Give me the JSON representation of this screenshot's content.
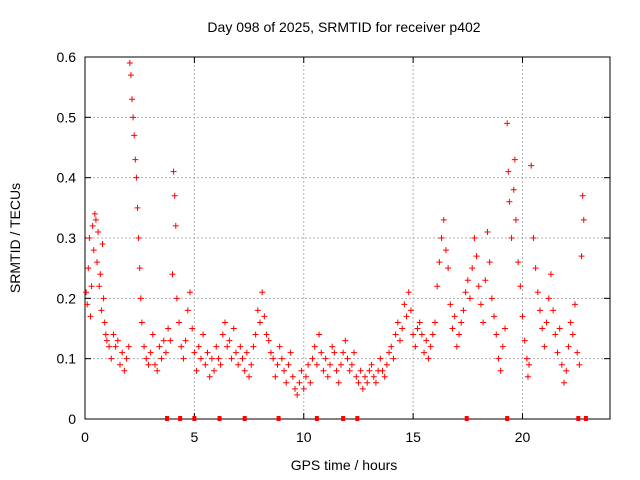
{
  "chart_data": {
    "type": "scatter",
    "title": "Day 098 of 2025, SRMTID for receiver p402",
    "xlabel": "GPS time / hours",
    "ylabel": "SRMTID / TECUs",
    "xlim": [
      0,
      24
    ],
    "ylim": [
      0,
      0.6
    ],
    "x_ticks": [
      0,
      5,
      10,
      15,
      20
    ],
    "x_tick_labels": [
      "0",
      "5",
      "10",
      "15",
      "20"
    ],
    "y_ticks": [
      0,
      0.1,
      0.2,
      0.3,
      0.4,
      0.5,
      0.6
    ],
    "y_tick_labels": [
      "0",
      "0.1",
      "0.2",
      "0.3",
      "0.4",
      "0.5",
      "0.6"
    ],
    "grid": true,
    "marker": "+",
    "color": "#ff0000",
    "series": [
      {
        "name": "SRMTID",
        "points": [
          [
            0.05,
            0.21
          ],
          [
            0.1,
            0.19
          ],
          [
            0.15,
            0.25
          ],
          [
            0.2,
            0.3
          ],
          [
            0.25,
            0.17
          ],
          [
            0.3,
            0.22
          ],
          [
            0.35,
            0.32
          ],
          [
            0.4,
            0.28
          ],
          [
            0.45,
            0.34
          ],
          [
            0.5,
            0.33
          ],
          [
            0.55,
            0.26
          ],
          [
            0.6,
            0.31
          ],
          [
            0.65,
            0.22
          ],
          [
            0.7,
            0.24
          ],
          [
            0.75,
            0.18
          ],
          [
            0.8,
            0.29
          ],
          [
            0.85,
            0.2
          ],
          [
            0.9,
            0.16
          ],
          [
            0.95,
            0.14
          ],
          [
            1.0,
            0.13
          ],
          [
            1.1,
            0.12
          ],
          [
            1.2,
            0.1
          ],
          [
            1.3,
            0.14
          ],
          [
            1.4,
            0.12
          ],
          [
            1.5,
            0.13
          ],
          [
            1.6,
            0.09
          ],
          [
            1.7,
            0.11
          ],
          [
            1.8,
            0.08
          ],
          [
            1.9,
            0.1
          ],
          [
            2.0,
            0.12
          ],
          [
            2.05,
            0.59
          ],
          [
            2.1,
            0.57
          ],
          [
            2.15,
            0.53
          ],
          [
            2.2,
            0.5
          ],
          [
            2.25,
            0.47
          ],
          [
            2.3,
            0.43
          ],
          [
            2.35,
            0.4
          ],
          [
            2.4,
            0.35
          ],
          [
            2.45,
            0.3
          ],
          [
            2.5,
            0.25
          ],
          [
            2.55,
            0.2
          ],
          [
            2.6,
            0.16
          ],
          [
            2.7,
            0.12
          ],
          [
            2.8,
            0.1
          ],
          [
            2.9,
            0.09
          ],
          [
            3.0,
            0.11
          ],
          [
            3.1,
            0.14
          ],
          [
            3.2,
            0.09
          ],
          [
            3.3,
            0.08
          ],
          [
            3.4,
            0.12
          ],
          [
            3.5,
            0.1
          ],
          [
            3.6,
            0.13
          ],
          [
            3.7,
            0.11
          ],
          [
            3.8,
            0.15
          ],
          [
            3.9,
            0.13
          ],
          [
            4.0,
            0.24
          ],
          [
            4.05,
            0.41
          ],
          [
            4.1,
            0.37
          ],
          [
            4.15,
            0.32
          ],
          [
            4.2,
            0.2
          ],
          [
            4.3,
            0.16
          ],
          [
            4.4,
            0.12
          ],
          [
            4.5,
            0.1
          ],
          [
            4.6,
            0.13
          ],
          [
            4.7,
            0.18
          ],
          [
            4.8,
            0.21
          ],
          [
            4.9,
            0.15
          ],
          [
            5.0,
            0.11
          ],
          [
            5.1,
            0.08
          ],
          [
            5.2,
            0.12
          ],
          [
            5.3,
            0.1
          ],
          [
            5.4,
            0.14
          ],
          [
            5.5,
            0.09
          ],
          [
            5.6,
            0.11
          ],
          [
            5.7,
            0.07
          ],
          [
            5.8,
            0.1
          ],
          [
            5.9,
            0.08
          ],
          [
            6.0,
            0.12
          ],
          [
            6.1,
            0.1
          ],
          [
            6.2,
            0.09
          ],
          [
            6.3,
            0.14
          ],
          [
            6.4,
            0.16
          ],
          [
            6.5,
            0.12
          ],
          [
            6.6,
            0.13
          ],
          [
            6.7,
            0.1
          ],
          [
            6.8,
            0.15
          ],
          [
            6.9,
            0.11
          ],
          [
            7.0,
            0.09
          ],
          [
            7.1,
            0.12
          ],
          [
            7.2,
            0.1
          ],
          [
            7.3,
            0.08
          ],
          [
            7.4,
            0.11
          ],
          [
            7.5,
            0.07
          ],
          [
            7.6,
            0.09
          ],
          [
            7.7,
            0.12
          ],
          [
            7.8,
            0.14
          ],
          [
            7.9,
            0.18
          ],
          [
            8.0,
            0.16
          ],
          [
            8.1,
            0.21
          ],
          [
            8.2,
            0.17
          ],
          [
            8.3,
            0.14
          ],
          [
            8.4,
            0.13
          ],
          [
            8.5,
            0.11
          ],
          [
            8.6,
            0.1
          ],
          [
            8.7,
            0.07
          ],
          [
            8.8,
            0.09
          ],
          [
            8.9,
            0.12
          ],
          [
            9.0,
            0.1
          ],
          [
            9.1,
            0.08
          ],
          [
            9.2,
            0.06
          ],
          [
            9.3,
            0.09
          ],
          [
            9.4,
            0.11
          ],
          [
            9.5,
            0.07
          ],
          [
            9.6,
            0.05
          ],
          [
            9.7,
            0.04
          ],
          [
            9.8,
            0.06
          ],
          [
            9.9,
            0.08
          ],
          [
            10.0,
            0.05
          ],
          [
            10.1,
            0.07
          ],
          [
            10.2,
            0.09
          ],
          [
            10.3,
            0.06
          ],
          [
            10.4,
            0.1
          ],
          [
            10.5,
            0.12
          ],
          [
            10.6,
            0.09
          ],
          [
            10.7,
            0.14
          ],
          [
            10.8,
            0.11
          ],
          [
            10.9,
            0.08
          ],
          [
            11.0,
            0.1
          ],
          [
            11.1,
            0.07
          ],
          [
            11.2,
            0.09
          ],
          [
            11.3,
            0.12
          ],
          [
            11.4,
            0.11
          ],
          [
            11.5,
            0.08
          ],
          [
            11.6,
            0.06
          ],
          [
            11.7,
            0.09
          ],
          [
            11.8,
            0.11
          ],
          [
            11.9,
            0.13
          ],
          [
            12.0,
            0.1
          ],
          [
            12.1,
            0.08
          ],
          [
            12.2,
            0.09
          ],
          [
            12.3,
            0.11
          ],
          [
            12.4,
            0.07
          ],
          [
            12.5,
            0.06
          ],
          [
            12.6,
            0.08
          ],
          [
            12.7,
            0.05
          ],
          [
            12.8,
            0.07
          ],
          [
            12.9,
            0.06
          ],
          [
            13.0,
            0.08
          ],
          [
            13.1,
            0.09
          ],
          [
            13.2,
            0.07
          ],
          [
            13.3,
            0.06
          ],
          [
            13.4,
            0.08
          ],
          [
            13.5,
            0.1
          ],
          [
            13.6,
            0.08
          ],
          [
            13.7,
            0.07
          ],
          [
            13.8,
            0.09
          ],
          [
            13.9,
            0.11
          ],
          [
            14.0,
            0.12
          ],
          [
            14.1,
            0.1
          ],
          [
            14.2,
            0.14
          ],
          [
            14.3,
            0.16
          ],
          [
            14.4,
            0.13
          ],
          [
            14.5,
            0.15
          ],
          [
            14.6,
            0.19
          ],
          [
            14.7,
            0.17
          ],
          [
            14.8,
            0.21
          ],
          [
            14.9,
            0.18
          ],
          [
            15.0,
            0.14
          ],
          [
            15.1,
            0.12
          ],
          [
            15.2,
            0.15
          ],
          [
            15.3,
            0.16
          ],
          [
            15.4,
            0.14
          ],
          [
            15.5,
            0.11
          ],
          [
            15.6,
            0.13
          ],
          [
            15.7,
            0.1
          ],
          [
            15.8,
            0.12
          ],
          [
            15.9,
            0.14
          ],
          [
            16.0,
            0.16
          ],
          [
            16.1,
            0.22
          ],
          [
            16.2,
            0.26
          ],
          [
            16.3,
            0.3
          ],
          [
            16.4,
            0.33
          ],
          [
            16.5,
            0.28
          ],
          [
            16.6,
            0.25
          ],
          [
            16.7,
            0.19
          ],
          [
            16.8,
            0.15
          ],
          [
            16.9,
            0.17
          ],
          [
            17.0,
            0.12
          ],
          [
            17.1,
            0.14
          ],
          [
            17.2,
            0.16
          ],
          [
            17.3,
            0.18
          ],
          [
            17.4,
            0.21
          ],
          [
            17.5,
            0.23
          ],
          [
            17.6,
            0.2
          ],
          [
            17.7,
            0.25
          ],
          [
            17.8,
            0.3
          ],
          [
            17.9,
            0.27
          ],
          [
            18.0,
            0.22
          ],
          [
            18.1,
            0.19
          ],
          [
            18.2,
            0.16
          ],
          [
            18.3,
            0.23
          ],
          [
            18.4,
            0.31
          ],
          [
            18.5,
            0.26
          ],
          [
            18.6,
            0.2
          ],
          [
            18.7,
            0.17
          ],
          [
            18.8,
            0.14
          ],
          [
            18.9,
            0.1
          ],
          [
            19.0,
            0.08
          ],
          [
            19.1,
            0.12
          ],
          [
            19.2,
            0.15
          ],
          [
            19.3,
            0.49
          ],
          [
            19.35,
            0.41
          ],
          [
            19.4,
            0.36
          ],
          [
            19.5,
            0.3
          ],
          [
            19.6,
            0.38
          ],
          [
            19.65,
            0.43
          ],
          [
            19.7,
            0.33
          ],
          [
            19.8,
            0.26
          ],
          [
            19.9,
            0.22
          ],
          [
            20.0,
            0.17
          ],
          [
            20.1,
            0.13
          ],
          [
            20.2,
            0.1
          ],
          [
            20.25,
            0.07
          ],
          [
            20.3,
            0.09
          ],
          [
            20.4,
            0.42
          ],
          [
            20.5,
            0.3
          ],
          [
            20.6,
            0.25
          ],
          [
            20.7,
            0.21
          ],
          [
            20.8,
            0.18
          ],
          [
            20.9,
            0.15
          ],
          [
            21.0,
            0.12
          ],
          [
            21.1,
            0.16
          ],
          [
            21.2,
            0.2
          ],
          [
            21.3,
            0.24
          ],
          [
            21.4,
            0.18
          ],
          [
            21.5,
            0.14
          ],
          [
            21.6,
            0.11
          ],
          [
            21.7,
            0.15
          ],
          [
            21.8,
            0.09
          ],
          [
            21.9,
            0.06
          ],
          [
            22.0,
            0.08
          ],
          [
            22.1,
            0.12
          ],
          [
            22.2,
            0.16
          ],
          [
            22.3,
            0.14
          ],
          [
            22.4,
            0.19
          ],
          [
            22.5,
            0.11
          ],
          [
            22.6,
            0.09
          ],
          [
            22.7,
            0.27
          ],
          [
            22.75,
            0.37
          ],
          [
            22.8,
            0.33
          ]
        ]
      }
    ],
    "gaps_marker_row": {
      "y": 0,
      "x": [
        3.75,
        4.35,
        5.0,
        6.15,
        7.3,
        8.85,
        10.6,
        11.8,
        12.45,
        17.45,
        19.3,
        22.55,
        22.9
      ]
    }
  }
}
